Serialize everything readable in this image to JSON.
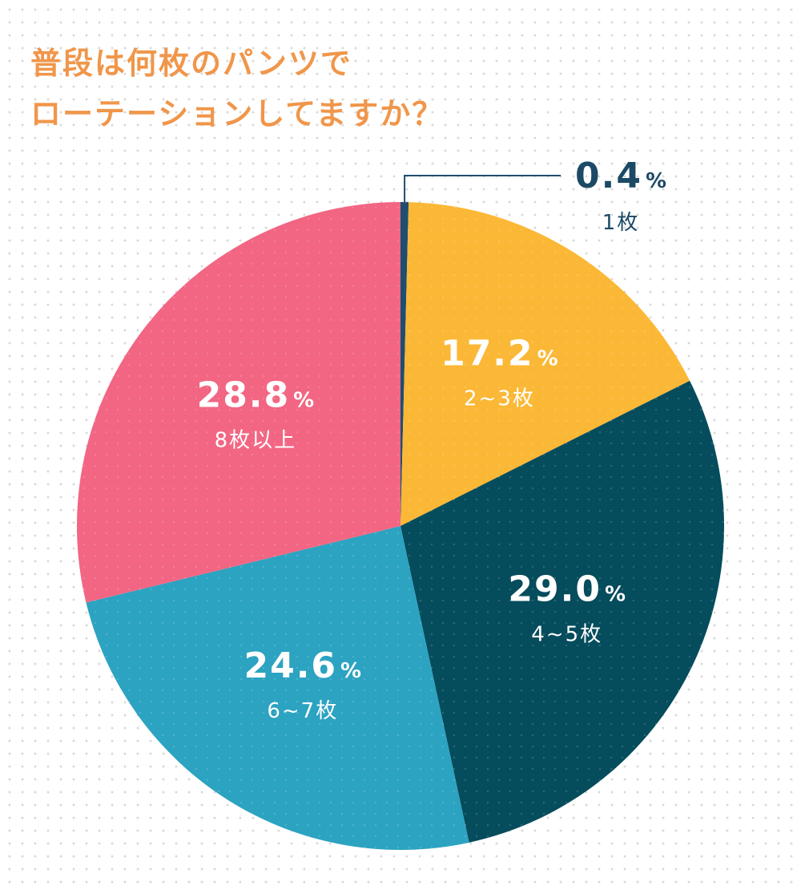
{
  "title": {
    "line1": "普段は何枚のパンツで",
    "line2": "ローテーションしてますか？"
  },
  "colors": {
    "title": "#f0964a",
    "label_light": "#ffffff",
    "label_dark": "#1c4a66"
  },
  "chart_data": {
    "type": "pie",
    "unit": "%",
    "start": "12 o'clock",
    "direction": "clockwise",
    "slices": [
      {
        "label": "1枚",
        "value": 0.4,
        "value_text": "0.4",
        "color": "#1f4e6e",
        "label_outside": true
      },
      {
        "label": "2~3枚",
        "value": 17.2,
        "value_text": "17.2",
        "color": "#fbb836"
      },
      {
        "label": "4~5枚",
        "value": 29.0,
        "value_text": "29.0",
        "color": "#054c5c"
      },
      {
        "label": "6~7枚",
        "value": 24.6,
        "value_text": "24.6",
        "color": "#2ca3c1"
      },
      {
        "label": "8枚以上",
        "value": 28.8,
        "value_text": "28.8",
        "color": "#f26683"
      }
    ]
  }
}
